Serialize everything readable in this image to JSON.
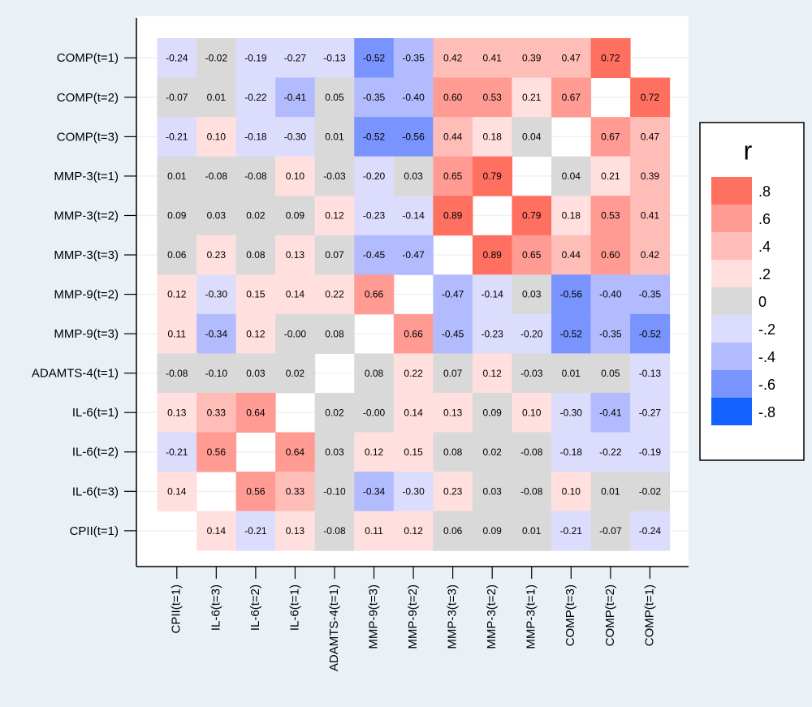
{
  "chart_data": {
    "type": "heatmap",
    "x_categories": [
      "CPII(t=1)",
      "IL-6(t=3)",
      "IL-6(t=2)",
      "IL-6(t=1)",
      "ADAMTS-4(t=1)",
      "MMP-9(t=3)",
      "MMP-9(t=2)",
      "MMP-3(t=3)",
      "MMP-3(t=2)",
      "MMP-3(t=1)",
      "COMP(t=3)",
      "COMP(t=2)",
      "COMP(t=1)"
    ],
    "y_categories": [
      "COMP(t=1)",
      "COMP(t=2)",
      "COMP(t=3)",
      "MMP-3(t=1)",
      "MMP-3(t=2)",
      "MMP-3(t=3)",
      "MMP-9(t=2)",
      "MMP-9(t=3)",
      "ADAMTS-4(t=1)",
      "IL-6(t=1)",
      "IL-6(t=2)",
      "IL-6(t=3)",
      "CPII(t=1)"
    ],
    "values": [
      [
        -0.24,
        -0.02,
        -0.19,
        -0.27,
        -0.13,
        -0.52,
        -0.35,
        0.42,
        0.41,
        0.39,
        0.47,
        0.72,
        null
      ],
      [
        -0.07,
        0.01,
        -0.22,
        -0.41,
        0.05,
        -0.35,
        -0.4,
        0.6,
        0.53,
        0.21,
        0.67,
        null,
        0.72
      ],
      [
        -0.21,
        0.1,
        -0.18,
        -0.3,
        0.01,
        -0.52,
        -0.56,
        0.44,
        0.18,
        0.04,
        null,
        0.67,
        0.47
      ],
      [
        0.01,
        -0.08,
        -0.08,
        0.1,
        -0.03,
        -0.2,
        0.03,
        0.65,
        0.79,
        null,
        0.04,
        0.21,
        0.39
      ],
      [
        0.09,
        0.03,
        0.02,
        0.09,
        0.12,
        -0.23,
        -0.14,
        0.89,
        null,
        0.79,
        0.18,
        0.53,
        0.41
      ],
      [
        0.06,
        0.23,
        0.08,
        0.13,
        0.07,
        -0.45,
        -0.47,
        null,
        0.89,
        0.65,
        0.44,
        0.6,
        0.42
      ],
      [
        0.12,
        -0.3,
        0.15,
        0.14,
        0.22,
        0.66,
        null,
        -0.47,
        -0.14,
        0.03,
        -0.56,
        -0.4,
        -0.35
      ],
      [
        0.11,
        -0.34,
        0.12,
        0,
        0.08,
        null,
        0.66,
        -0.45,
        -0.23,
        -0.2,
        -0.52,
        -0.35,
        -0.52
      ],
      [
        -0.08,
        -0.1,
        0.03,
        0.02,
        null,
        0.08,
        0.22,
        0.07,
        0.12,
        -0.03,
        0.01,
        0.05,
        -0.13
      ],
      [
        0.13,
        0.33,
        0.64,
        null,
        0.02,
        0,
        0.14,
        0.13,
        0.09,
        0.1,
        -0.3,
        -0.41,
        -0.27
      ],
      [
        -0.21,
        0.56,
        null,
        0.64,
        0.03,
        0.12,
        0.15,
        0.08,
        0.02,
        -0.08,
        -0.18,
        -0.22,
        -0.19
      ],
      [
        0.14,
        null,
        0.56,
        0.33,
        -0.1,
        -0.34,
        -0.3,
        0.23,
        0.03,
        -0.08,
        0.1,
        0.01,
        -0.02
      ],
      [
        null,
        0.14,
        -0.21,
        0.13,
        -0.08,
        0.11,
        0.12,
        0.06,
        0.09,
        0.01,
        -0.21,
        -0.07,
        -0.24
      ]
    ],
    "value_labels": [
      [
        "-0.24",
        "-0.02",
        "-0.19",
        "-0.27",
        "-0.13",
        "-0.52",
        "-0.35",
        "0.42",
        "0.41",
        "0.39",
        "0.47",
        "0.72",
        null
      ],
      [
        "-0.07",
        "0.01",
        "-0.22",
        "-0.41",
        "0.05",
        "-0.35",
        "-0.40",
        "0.60",
        "0.53",
        "0.21",
        "0.67",
        null,
        "0.72"
      ],
      [
        "-0.21",
        "0.10",
        "-0.18",
        "-0.30",
        "0.01",
        "-0.52",
        "-0.56",
        "0.44",
        "0.18",
        "0.04",
        null,
        "0.67",
        "0.47"
      ],
      [
        "0.01",
        "-0.08",
        "-0.08",
        "0.10",
        "-0.03",
        "-0.20",
        "0.03",
        "0.65",
        "0.79",
        null,
        "0.04",
        "0.21",
        "0.39"
      ],
      [
        "0.09",
        "0.03",
        "0.02",
        "0.09",
        "0.12",
        "-0.23",
        "-0.14",
        "0.89",
        null,
        "0.79",
        "0.18",
        "0.53",
        "0.41"
      ],
      [
        "0.06",
        "0.23",
        "0.08",
        "0.13",
        "0.07",
        "-0.45",
        "-0.47",
        null,
        "0.89",
        "0.65",
        "0.44",
        "0.60",
        "0.42"
      ],
      [
        "0.12",
        "-0.30",
        "0.15",
        "0.14",
        "0.22",
        "0.66",
        null,
        "-0.47",
        "-0.14",
        "0.03",
        "-0.56",
        "-0.40",
        "-0.35"
      ],
      [
        "0.11",
        "-0.34",
        "0.12",
        "-0.00",
        "0.08",
        null,
        "0.66",
        "-0.45",
        "-0.23",
        "-0.20",
        "-0.52",
        "-0.35",
        "-0.52"
      ],
      [
        "-0.08",
        "-0.10",
        "0.03",
        "0.02",
        null,
        "0.08",
        "0.22",
        "0.07",
        "0.12",
        "-0.03",
        "0.01",
        "0.05",
        "-0.13"
      ],
      [
        "0.13",
        "0.33",
        "0.64",
        null,
        "0.02",
        "-0.00",
        "0.14",
        "0.13",
        "0.09",
        "0.10",
        "-0.30",
        "-0.41",
        "-0.27"
      ],
      [
        "-0.21",
        "0.56",
        null,
        "0.64",
        "0.03",
        "0.12",
        "0.15",
        "0.08",
        "0.02",
        "-0.08",
        "-0.18",
        "-0.22",
        "-0.19"
      ],
      [
        "0.14",
        null,
        "0.56",
        "0.33",
        "-0.10",
        "-0.34",
        "-0.30",
        "0.23",
        "0.03",
        "-0.08",
        "0.10",
        "0.01",
        "-0.02"
      ],
      [
        null,
        "0.14",
        "-0.21",
        "0.13",
        "-0.08",
        "0.11",
        "0.12",
        "0.06",
        "0.09",
        "0.01",
        "-0.21",
        "-0.07",
        "-0.24"
      ]
    ],
    "grid": true,
    "legend": {
      "title": "r",
      "position": "right",
      "ticks": [
        {
          "value": 0.8,
          "label": ".8"
        },
        {
          "value": 0.6,
          "label": ".6"
        },
        {
          "value": 0.4,
          "label": ".4"
        },
        {
          "value": 0.2,
          "label": ".2"
        },
        0,
        {
          "value": -0.2,
          "label": "-.2"
        },
        {
          "value": -0.4,
          "label": "-.4"
        },
        {
          "value": -0.6,
          "label": "-.6"
        },
        {
          "value": -0.8,
          "label": "-.8"
        }
      ],
      "colors": [
        "#ff7060",
        "#ff9b92",
        "#ffbdb8",
        "#ffe0de",
        "#d9d9d9",
        "#dcdcfc",
        "#b3bbff",
        "#7a94ff",
        "#1462ff"
      ]
    }
  }
}
